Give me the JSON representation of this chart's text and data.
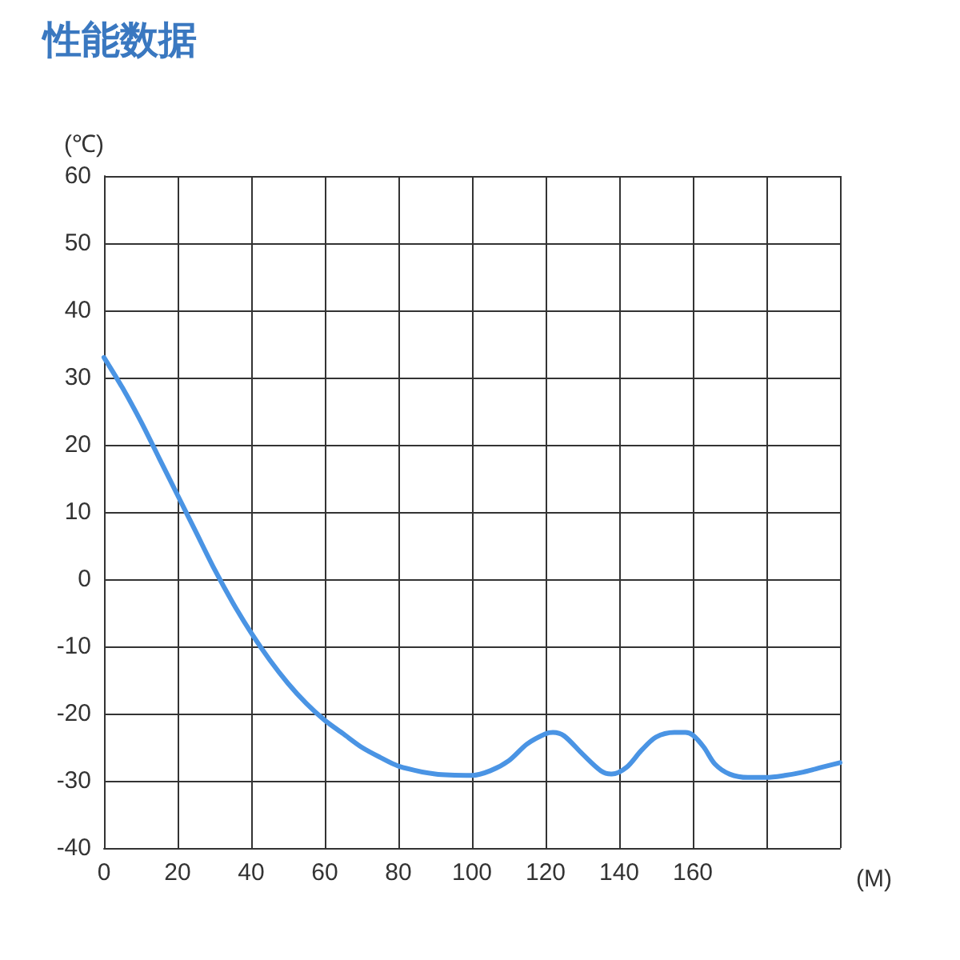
{
  "chart_data": {
    "type": "line",
    "title": "性能数据",
    "xlabel": "(M)",
    "ylabel": "(℃)",
    "xlim": [
      0,
      200
    ],
    "xticks": [
      0,
      20,
      40,
      60,
      80,
      100,
      120,
      140,
      160,
      {
        "value": 180,
        "label": null
      },
      {
        "value": 200,
        "label": null
      }
    ],
    "ylim": [
      -40,
      60
    ],
    "yticks": [
      -40,
      -30,
      -20,
      -10,
      0,
      10,
      20,
      30,
      40,
      50,
      60
    ],
    "grid": true,
    "marker": "none",
    "line_style": "solid",
    "series": [
      {
        "color": "#4a94e4",
        "x": [
          0,
          5,
          10,
          15,
          20,
          25,
          30,
          35,
          40,
          45,
          50,
          55,
          60,
          65,
          70,
          75,
          80,
          90,
          100,
          105,
          110,
          115,
          120,
          122,
          125,
          130,
          135,
          138,
          142,
          146,
          150,
          155,
          158,
          160,
          163,
          166,
          170,
          175,
          180,
          185,
          190,
          195,
          200
        ],
        "values": [
          33,
          28.5,
          23.5,
          18,
          12.5,
          7,
          1.5,
          -3.5,
          -8,
          -12,
          -15.5,
          -18.5,
          -21,
          -23,
          -25,
          -26.5,
          -27.8,
          -29,
          -29.2,
          -28.5,
          -27,
          -24.5,
          -23,
          -22.8,
          -23.3,
          -26,
          -28.5,
          -29,
          -28,
          -25.5,
          -23.5,
          -22.8,
          -22.8,
          -23.2,
          -25,
          -27.5,
          -29,
          -29.5,
          -29.5,
          -29.2,
          -28.7,
          -28,
          -27.3
        ]
      }
    ]
  }
}
